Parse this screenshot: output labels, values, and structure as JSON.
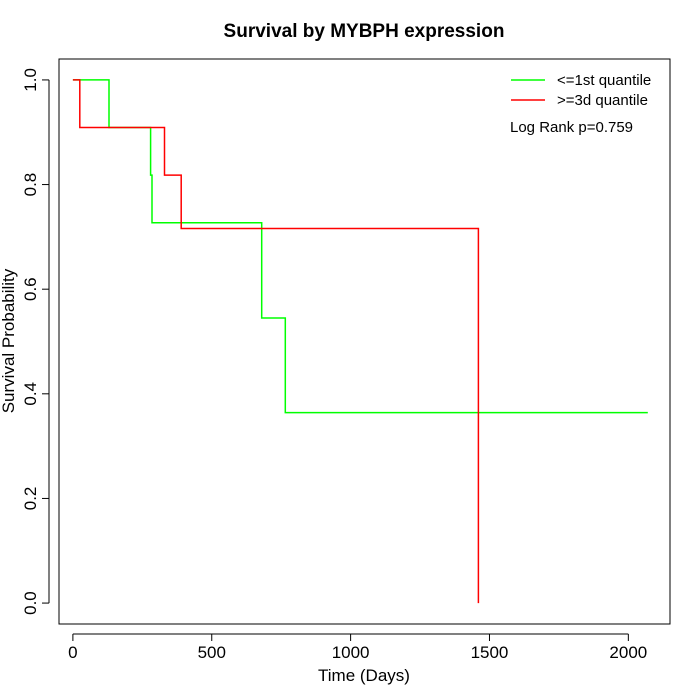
{
  "chart_data": {
    "type": "line",
    "title": "Survival by MYBPH expression",
    "xlabel": "Time (Days)",
    "ylabel": "Survival Probability",
    "xlim": [
      -50,
      2150
    ],
    "ylim": [
      -0.04,
      1.04
    ],
    "xticks": [
      0,
      500,
      1000,
      1500,
      2000
    ],
    "yticks": [
      0.0,
      0.2,
      0.4,
      0.6,
      0.8,
      1.0
    ],
    "xtick_labels": [
      "0",
      "500",
      "1000",
      "1500",
      "2000"
    ],
    "ytick_labels": [
      "0.0",
      "0.2",
      "0.4",
      "0.6",
      "0.8",
      "1.0"
    ],
    "grid": false,
    "legend_position": "top-right",
    "annotation": "Log Rank p=0.759",
    "series": [
      {
        "name": "<=1st quantile",
        "color": "#00ff00",
        "step": true,
        "x": [
          0,
          130,
          130,
          280,
          280,
          285,
          285,
          680,
          680,
          765,
          765,
          2070
        ],
        "y": [
          1.0,
          1.0,
          0.909,
          0.909,
          0.818,
          0.818,
          0.727,
          0.727,
          0.545,
          0.545,
          0.364,
          0.364
        ]
      },
      {
        "name": ">=3d quantile",
        "color": "#ff0000",
        "step": true,
        "x": [
          0,
          25,
          25,
          330,
          330,
          390,
          390,
          1460,
          1460
        ],
        "y": [
          1.0,
          1.0,
          0.909,
          0.909,
          0.818,
          0.818,
          0.716,
          0.716,
          0.0
        ]
      }
    ]
  }
}
